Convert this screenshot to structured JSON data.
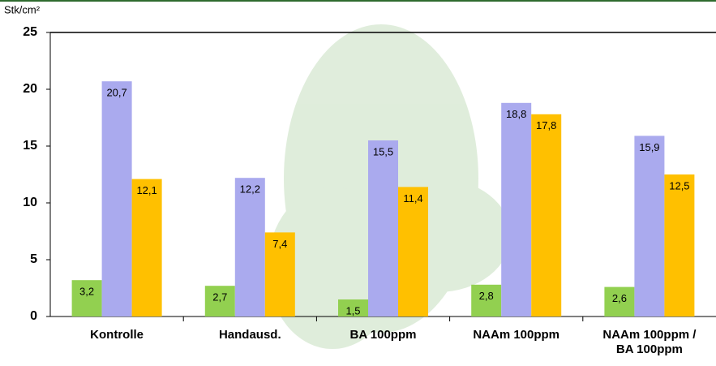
{
  "chart_data": {
    "type": "bar",
    "y_label": "Stk/cm²",
    "categories": [
      "Kontrolle",
      "Handausd.",
      "BA 100ppm",
      "NAAm 100ppm",
      "NAAm 100ppm / BA 100ppm"
    ],
    "series": [
      {
        "color": "#92d050",
        "values": [
          3.2,
          2.7,
          1.5,
          2.8,
          2.6
        ],
        "value_labels": [
          "3,2",
          "2,7",
          "1,5",
          "2,8",
          "2,6"
        ]
      },
      {
        "color": "#aaaaee",
        "values": [
          20.7,
          12.2,
          15.5,
          18.8,
          15.9
        ],
        "value_labels": [
          "20,7",
          "12,2",
          "15,5",
          "18,8",
          "15,9"
        ]
      },
      {
        "color": "#ffc000",
        "values": [
          12.1,
          7.4,
          11.4,
          17.8,
          12.5
        ],
        "value_labels": [
          "12,1",
          "7,4",
          "11,4",
          "17,8",
          "12,5"
        ]
      }
    ],
    "ylim": [
      0,
      25
    ],
    "yticks": [
      0,
      5,
      10,
      15,
      20,
      25
    ],
    "grid": false
  }
}
